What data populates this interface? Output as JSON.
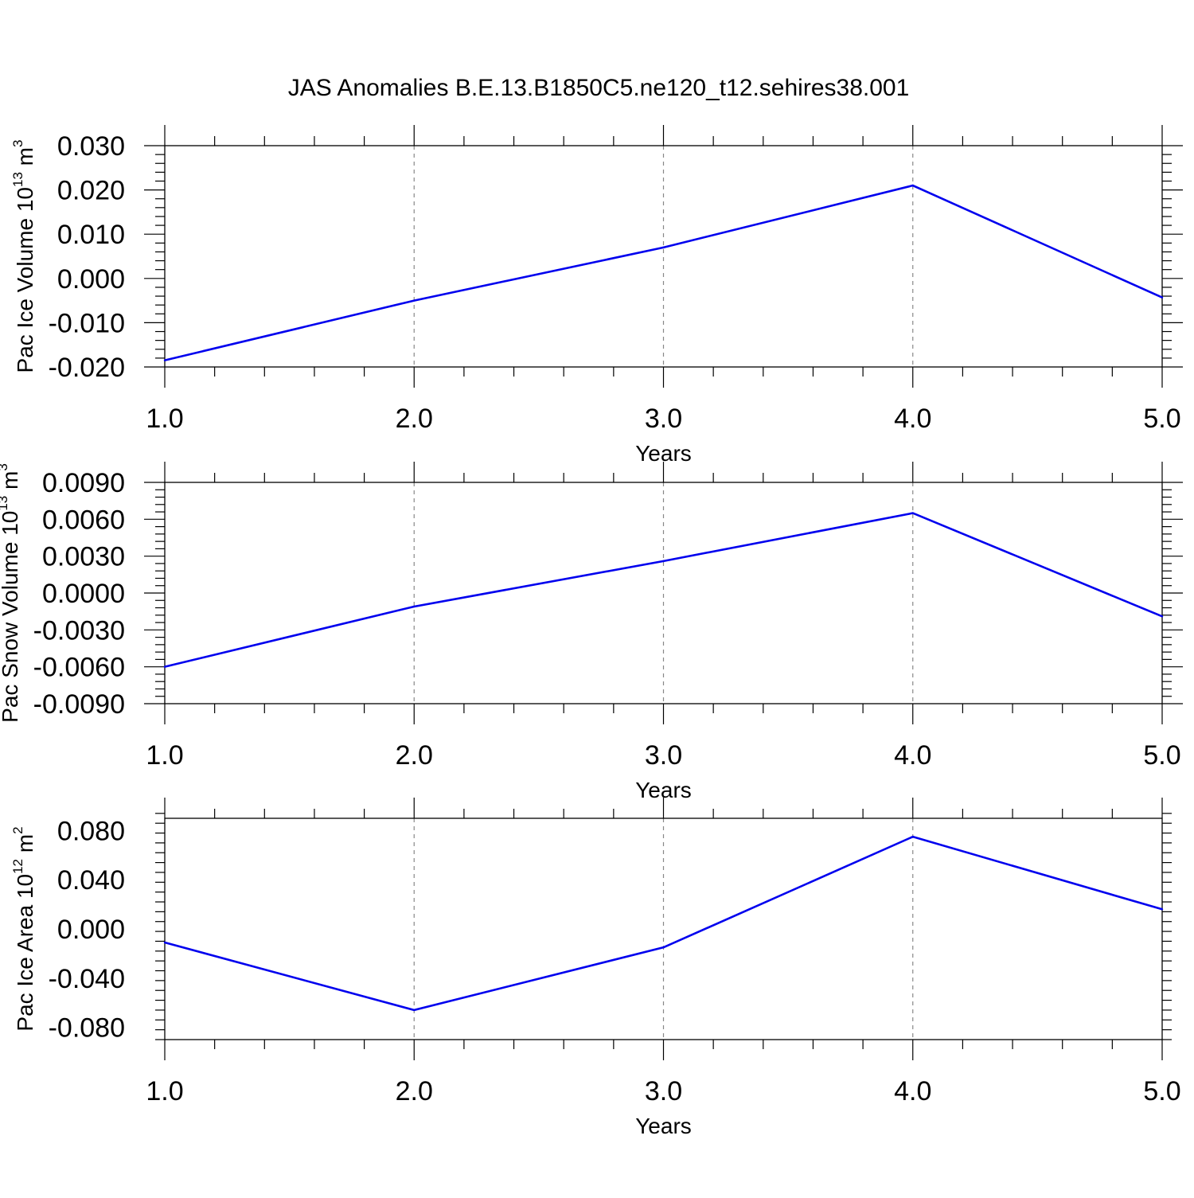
{
  "figure": {
    "title": "JAS Anomalies B.E.13.B1850C5.ne120_t12.sehires38.001"
  },
  "colors": {
    "line": "#0000ee",
    "axis": "#000000",
    "grid": "#888888"
  },
  "chart_data": [
    {
      "type": "line",
      "xlabel": "Years",
      "ylabel": {
        "base": "Pac Ice Volume 10",
        "exponent": "13",
        "unit": " m",
        "unit_exponent": "3"
      },
      "x": [
        1.0,
        2.0,
        3.0,
        4.0,
        5.0
      ],
      "series": [
        {
          "values": [
            -0.0185,
            -0.005,
            0.007,
            0.021,
            -0.0043
          ]
        }
      ],
      "xlim": [
        1.0,
        5.0
      ],
      "ylim": [
        -0.02,
        0.03
      ],
      "xticks": [
        "1.0",
        "2.0",
        "3.0",
        "4.0",
        "5.0"
      ],
      "yticks": [
        -0.02,
        -0.01,
        0.0,
        0.01,
        0.02,
        0.03
      ],
      "ytick_labels": [
        "-0.020",
        "-0.010",
        "0.000",
        "0.010",
        "0.020",
        "0.030"
      ],
      "grid": "vertical dashed at major x ticks"
    },
    {
      "type": "line",
      "xlabel": "Years",
      "ylabel": {
        "base": "Pac Snow Volume 10",
        "exponent": "13",
        "unit": " m",
        "unit_exponent": "3"
      },
      "x": [
        1.0,
        2.0,
        3.0,
        4.0,
        5.0
      ],
      "series": [
        {
          "values": [
            -0.006,
            -0.0011,
            0.0026,
            0.0065,
            -0.0019
          ]
        }
      ],
      "xlim": [
        1.0,
        5.0
      ],
      "ylim": [
        -0.009,
        0.009
      ],
      "xticks": [
        "1.0",
        "2.0",
        "3.0",
        "4.0",
        "5.0"
      ],
      "yticks": [
        -0.009,
        -0.006,
        -0.003,
        0.0,
        0.003,
        0.006,
        0.009
      ],
      "ytick_labels": [
        "-0.0090",
        "-0.0060",
        "-0.0030",
        "0.0000",
        "0.0030",
        "0.0060",
        "0.0090"
      ],
      "grid": "vertical dashed at major x ticks"
    },
    {
      "type": "line",
      "xlabel": "Years",
      "ylabel": {
        "base": "Pac Ice Area 10",
        "exponent": "12",
        "unit": " m",
        "unit_exponent": "2"
      },
      "x": [
        1.0,
        2.0,
        3.0,
        4.0,
        5.0
      ],
      "series": [
        {
          "values": [
            -0.011,
            -0.066,
            -0.015,
            0.075,
            0.016
          ]
        }
      ],
      "xlim": [
        1.0,
        5.0
      ],
      "ylim": [
        -0.09,
        0.09
      ],
      "xticks": [
        "1.0",
        "2.0",
        "3.0",
        "4.0",
        "5.0"
      ],
      "yticks": [
        -0.08,
        -0.04,
        0.0,
        0.04,
        0.08
      ],
      "ytick_labels": [
        "-0.080",
        "-0.040",
        "0.000",
        "0.040",
        "0.080"
      ],
      "grid": "vertical dashed at major x ticks"
    }
  ]
}
